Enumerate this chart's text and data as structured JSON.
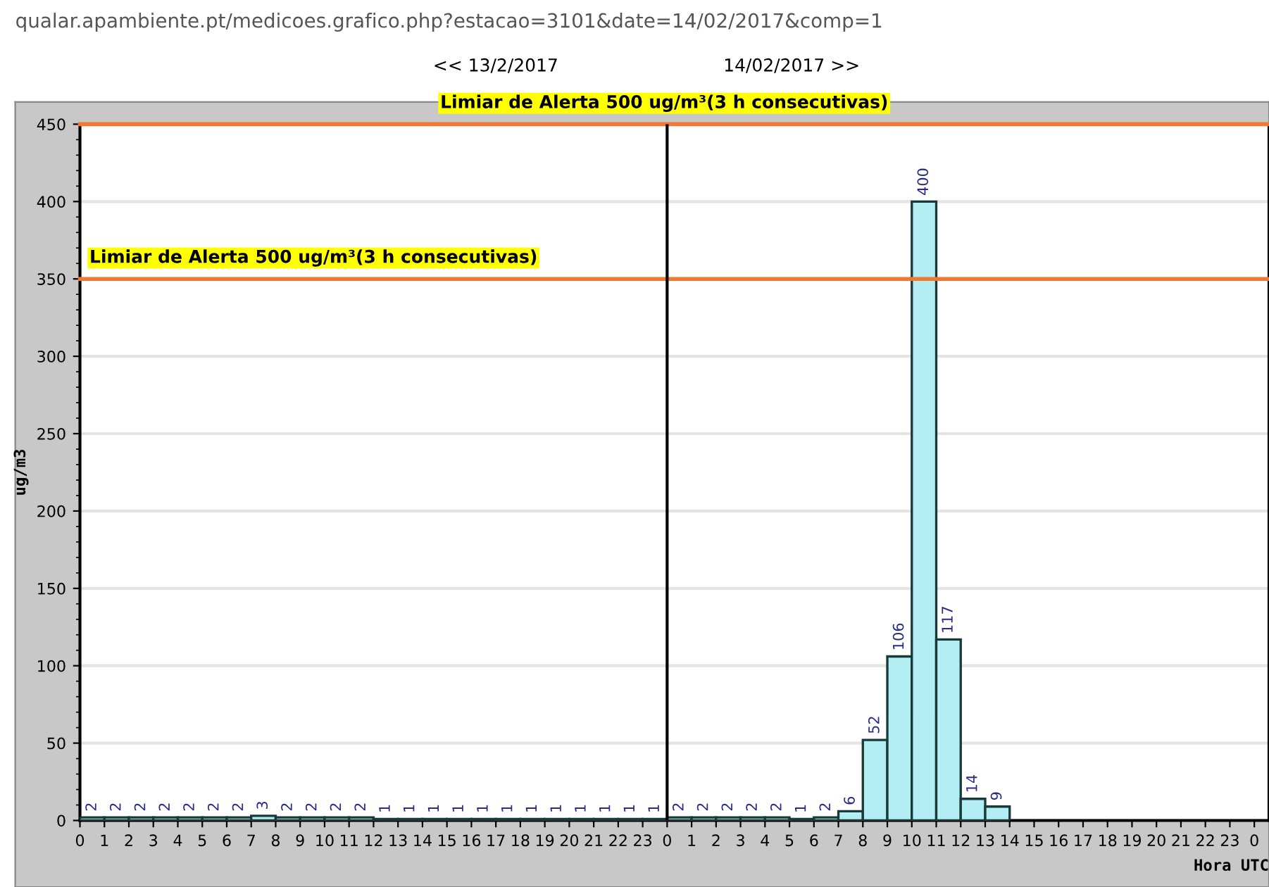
{
  "chart_data": {
    "type": "bar",
    "xlabel": "Hora UTC",
    "ylabel": "ug/m3",
    "annotations": [
      "qualar.apambiente.pt/medicoes.grafico.php?estacao=3101&date=14/02/2017&comp=1",
      "<< 13/2/2017",
      "14/02/2017 >>"
    ],
    "x": [
      "2017-02-13T00:30",
      "2017-02-13T01:30",
      "2017-02-13T02:30",
      "2017-02-13T03:30",
      "2017-02-13T04:30",
      "2017-02-13T05:30",
      "2017-02-13T06:30",
      "2017-02-13T07:30",
      "2017-02-13T08:30",
      "2017-02-13T09:30",
      "2017-02-13T10:30",
      "2017-02-13T11:30",
      "2017-02-13T12:30",
      "2017-02-13T13:30",
      "2017-02-13T14:30",
      "2017-02-13T15:30",
      "2017-02-13T16:30",
      "2017-02-13T17:30",
      "2017-02-13T18:30",
      "2017-02-13T19:30",
      "2017-02-13T20:30",
      "2017-02-13T21:30",
      "2017-02-13T22:30",
      "2017-02-13T23:30",
      "2017-02-14T00:30",
      "2017-02-14T01:30",
      "2017-02-14T02:30",
      "2017-02-14T03:30",
      "2017-02-14T04:30",
      "2017-02-14T05:30",
      "2017-02-14T06:30",
      "2017-02-14T07:30",
      "2017-02-14T08:30",
      "2017-02-14T09:30",
      "2017-02-14T10:30",
      "2017-02-14T11:30",
      "2017-02-14T12:30",
      "2017-02-14T13:30"
    ],
    "values": [
      2,
      2,
      2,
      2,
      2,
      2,
      2,
      3,
      2,
      2,
      2,
      2,
      1,
      1,
      1,
      1,
      1,
      1,
      1,
      1,
      1,
      1,
      1,
      1,
      2,
      2,
      2,
      2,
      2,
      1,
      2,
      6,
      52,
      106,
      400,
      117,
      14,
      9
    ],
    "color": "#b3eef5",
    "data_labels": true,
    "xlim": [
      "2017-02-13T00:00",
      "2017-02-15T00:36"
    ],
    "xticks": [
      {
        "value": "2017-02-13T00:00",
        "label": "0"
      },
      {
        "value": "2017-02-13T01:00",
        "label": "1"
      },
      {
        "value": "2017-02-13T02:00",
        "label": "2"
      },
      {
        "value": "2017-02-13T03:00",
        "label": "3"
      },
      {
        "value": "2017-02-13T04:00",
        "label": "4"
      },
      {
        "value": "2017-02-13T05:00",
        "label": "5"
      },
      {
        "value": "2017-02-13T06:00",
        "label": "6"
      },
      {
        "value": "2017-02-13T07:00",
        "label": "7"
      },
      {
        "value": "2017-02-13T08:00",
        "label": "8"
      },
      {
        "value": "2017-02-13T09:00",
        "label": "9"
      },
      {
        "value": "2017-02-13T10:00",
        "label": "10"
      },
      {
        "value": "2017-02-13T11:00",
        "label": "11"
      },
      {
        "value": "2017-02-13T12:00",
        "label": "12"
      },
      {
        "value": "2017-02-13T13:00",
        "label": "13"
      },
      {
        "value": "2017-02-13T14:00",
        "label": "14"
      },
      {
        "value": "2017-02-13T15:00",
        "label": "15"
      },
      {
        "value": "2017-02-13T16:00",
        "label": "16"
      },
      {
        "value": "2017-02-13T17:00",
        "label": "17"
      },
      {
        "value": "2017-02-13T18:00",
        "label": "18"
      },
      {
        "value": "2017-02-13T19:00",
        "label": "19"
      },
      {
        "value": "2017-02-13T20:00",
        "label": "20"
      },
      {
        "value": "2017-02-13T21:00",
        "label": "21"
      },
      {
        "value": "2017-02-13T22:00",
        "label": "22"
      },
      {
        "value": "2017-02-13T23:00",
        "label": "23"
      },
      {
        "value": "2017-02-14T00:00",
        "label": "0"
      },
      {
        "value": "2017-02-14T01:00",
        "label": "1"
      },
      {
        "value": "2017-02-14T02:00",
        "label": "2"
      },
      {
        "value": "2017-02-14T03:00",
        "label": "3"
      },
      {
        "value": "2017-02-14T04:00",
        "label": "4"
      },
      {
        "value": "2017-02-14T05:00",
        "label": "5"
      },
      {
        "value": "2017-02-14T06:00",
        "label": "6"
      },
      {
        "value": "2017-02-14T07:00",
        "label": "7"
      },
      {
        "value": "2017-02-14T08:00",
        "label": "8"
      },
      {
        "value": "2017-02-14T09:00",
        "label": "9"
      },
      {
        "value": "2017-02-14T10:00",
        "label": "10"
      },
      {
        "value": "2017-02-14T11:00",
        "label": "11"
      },
      {
        "value": "2017-02-14T12:00",
        "label": "12"
      },
      {
        "value": "2017-02-14T13:00",
        "label": "13"
      },
      {
        "value": "2017-02-14T14:00",
        "label": "14"
      },
      {
        "value": "2017-02-14T15:00",
        "label": "15"
      },
      {
        "value": "2017-02-14T16:00",
        "label": "16"
      },
      {
        "value": "2017-02-14T17:00",
        "label": "17"
      },
      {
        "value": "2017-02-14T18:00",
        "label": "18"
      },
      {
        "value": "2017-02-14T19:00",
        "label": "19"
      },
      {
        "value": "2017-02-14T20:00",
        "label": "20"
      },
      {
        "value": "2017-02-14T21:00",
        "label": "21"
      },
      {
        "value": "2017-02-14T22:00",
        "label": "22"
      },
      {
        "value": "2017-02-14T23:00",
        "label": "23"
      },
      {
        "value": "2017-02-15T00:00",
        "label": "0"
      }
    ],
    "ylim": [
      0,
      450
    ],
    "yticks": [
      0,
      50,
      100,
      150,
      200,
      250,
      300,
      350,
      400,
      450
    ],
    "grid": "y",
    "ref_lines": [
      {
        "axis": "y",
        "value": 450,
        "label": "Limiar de Alerta 500 ug/m³(3 h consecutivas)",
        "color": "#f07830"
      },
      {
        "axis": "y",
        "value": 350,
        "label": "Limiar de Alerta 500 ug/m³(3 h consecutivas)",
        "color": "#f07830"
      },
      {
        "axis": "x",
        "value": "2017-02-14T00:00",
        "color": "#000000"
      }
    ]
  }
}
